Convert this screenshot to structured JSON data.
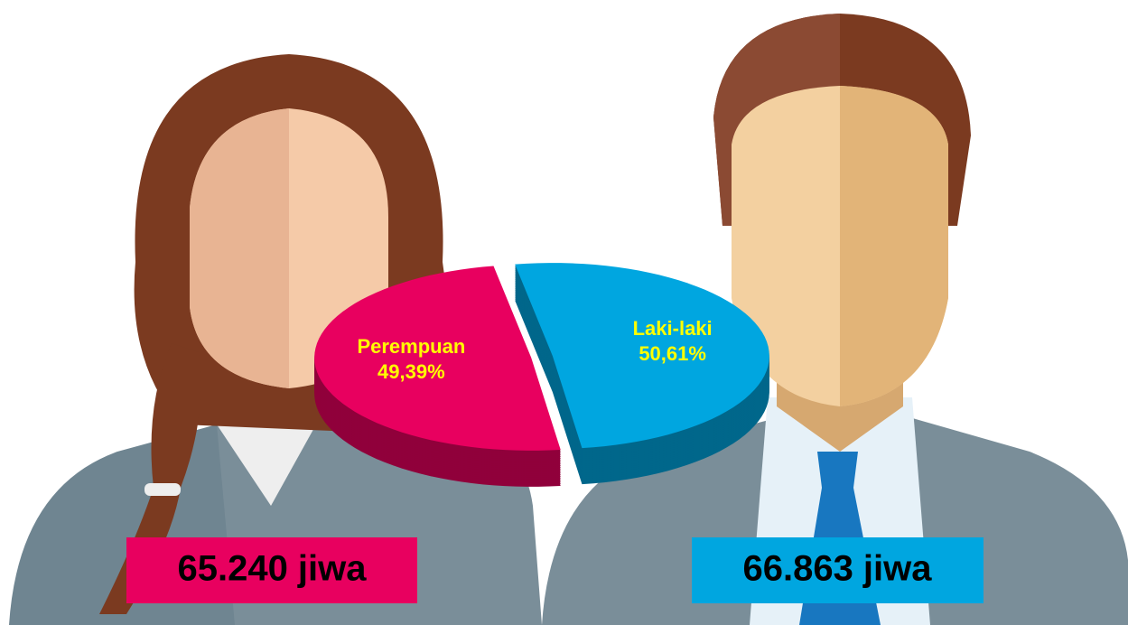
{
  "chart_data": {
    "type": "pie",
    "categories": [
      "Perempuan",
      "Laki-laki"
    ],
    "values": [
      49.39,
      50.61
    ],
    "value_labels": [
      "49,39%",
      "50,61%"
    ],
    "colors": [
      "#e8005f",
      "#00a6e0"
    ],
    "annotations": [
      "65.240 jiwa",
      "66.863 jiwa"
    ]
  }
}
